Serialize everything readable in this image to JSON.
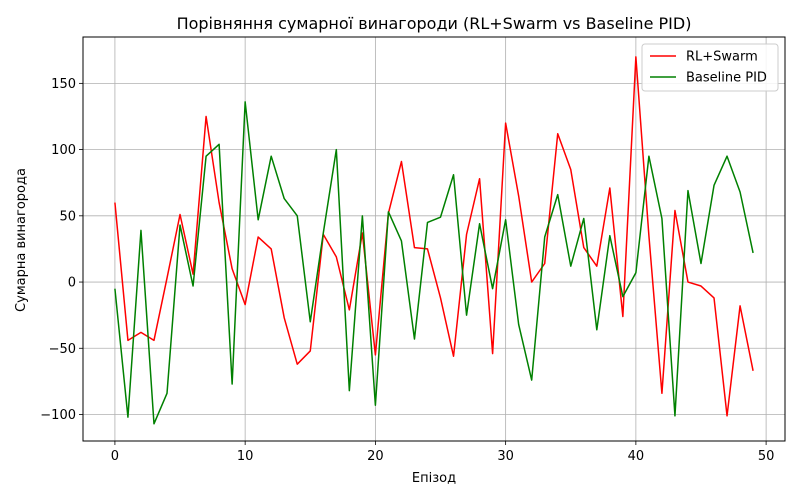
{
  "chart_data": {
    "type": "line",
    "title": "Порівняння сумарної винагороди (RL+Swarm vs Baseline PID)",
    "xlabel": "Епізод",
    "ylabel": "Сумарна винагорода",
    "xlim": [
      -2.45,
      51.45
    ],
    "ylim": [
      -120,
      185
    ],
    "xticks": [
      0,
      10,
      20,
      30,
      40,
      50
    ],
    "yticks": [
      -100,
      -50,
      0,
      50,
      100,
      150
    ],
    "grid": true,
    "legend_position": "top-right",
    "x": [
      0,
      1,
      2,
      3,
      4,
      5,
      6,
      7,
      8,
      9,
      10,
      11,
      12,
      13,
      14,
      15,
      16,
      17,
      18,
      19,
      20,
      21,
      22,
      23,
      24,
      25,
      26,
      27,
      28,
      29,
      30,
      31,
      32,
      33,
      34,
      35,
      36,
      37,
      38,
      39,
      40,
      41,
      42,
      43,
      44,
      45,
      46,
      47,
      48,
      49
    ],
    "series": [
      {
        "name": "RL+Swarm",
        "color": "#ff0000",
        "values": [
          60,
          -44,
          -38,
          -44,
          3,
          51,
          6,
          125,
          60,
          10,
          -17,
          34,
          25,
          -27,
          -62,
          -52,
          36,
          19,
          -21,
          37,
          -55,
          52,
          91,
          26,
          25,
          -12,
          -56,
          36,
          78,
          -54,
          120,
          65,
          0,
          14,
          112,
          85,
          26,
          12,
          71,
          -26,
          170,
          35,
          -84,
          54,
          0,
          -3,
          -12,
          -101,
          -18,
          -67
        ]
      },
      {
        "name": "Baseline PID",
        "color": "#008000",
        "values": [
          -5,
          -102,
          39,
          -107,
          -84,
          43,
          -3,
          95,
          104,
          -77,
          136,
          47,
          95,
          63,
          50,
          -30,
          37,
          100,
          -82,
          50,
          -93,
          53,
          31,
          -43,
          45,
          49,
          81,
          -25,
          44,
          -5,
          47,
          -32,
          -74,
          34,
          66,
          12,
          48,
          -36,
          35,
          -11,
          7,
          95,
          48,
          -101,
          69,
          14,
          73,
          95,
          68,
          22
        ]
      }
    ]
  }
}
